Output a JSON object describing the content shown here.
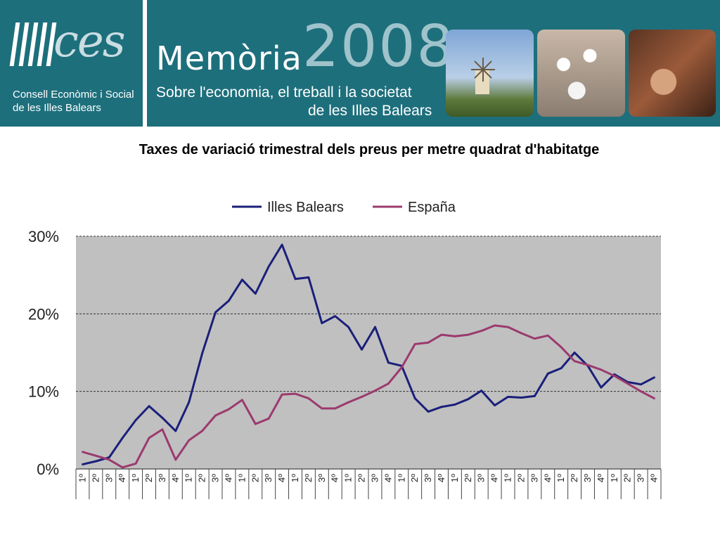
{
  "header": {
    "logo_text": "ces",
    "logo_line1": "Consell Econòmic i Social",
    "logo_line2": "de les Illes Balears",
    "memoria": "Memòria",
    "year": "2008",
    "subtitle_line1": "Sobre l'economia, el treball i la societat",
    "subtitle_line2": "de les Illes Balears",
    "photos": [
      "windmill-photo",
      "cooks-group-photo",
      "craft-hands-photo"
    ]
  },
  "chart_data": {
    "type": "line",
    "title": "Taxes de variació trimestral dels preus per metre quadrat d'habitatge",
    "ylim": [
      0,
      30
    ],
    "yticks": [
      "0%",
      "10%",
      "20%",
      "30%"
    ],
    "grid": true,
    "legend_position": "top",
    "background_color": "#c0c0c0",
    "categories": [
      "1º",
      "2º",
      "3º",
      "4º",
      "1º",
      "2º",
      "3º",
      "4º",
      "1º",
      "2º",
      "3º",
      "4º",
      "1º",
      "2º",
      "3º",
      "4º",
      "1º",
      "2º",
      "3º",
      "4º",
      "1º",
      "2º",
      "3º",
      "4º",
      "1º",
      "2º",
      "3º",
      "4º",
      "1º",
      "2º",
      "3º",
      "4º",
      "1º",
      "2º",
      "3º",
      "4º",
      "1º",
      "2º",
      "3º",
      "4º",
      "1º",
      "2º",
      "3º",
      "4º"
    ],
    "series": [
      {
        "name": "Illes Balears",
        "color": "#1a1f7a",
        "values": [
          0.6,
          1.0,
          1.5,
          4.0,
          6.3,
          8.1,
          6.6,
          4.9,
          8.6,
          14.9,
          20.2,
          21.7,
          24.4,
          22.6,
          26.1,
          28.9,
          24.5,
          24.7,
          18.8,
          19.7,
          18.3,
          15.4,
          18.3,
          13.7,
          13.3,
          9.1,
          7.4,
          8.0,
          8.3,
          9.0,
          10.1,
          8.2,
          9.3,
          9.2,
          9.4,
          12.3,
          13.0,
          15.0,
          13.3,
          10.5,
          12.2,
          11.2,
          10.9,
          11.8
        ]
      },
      {
        "name": "España",
        "color": "#9b3a6e",
        "values": [
          2.2,
          1.7,
          1.2,
          0.2,
          0.7,
          4.0,
          5.1,
          1.2,
          3.7,
          4.9,
          6.9,
          7.7,
          8.9,
          5.8,
          6.5,
          9.6,
          9.7,
          9.1,
          7.8,
          7.8,
          8.6,
          9.3,
          10.1,
          11.0,
          13.1,
          16.1,
          16.3,
          17.3,
          17.1,
          17.3,
          17.8,
          18.5,
          18.3,
          17.5,
          16.8,
          17.2,
          15.7,
          13.9,
          13.4,
          12.8,
          12.0,
          11.0,
          10.0,
          9.1
        ]
      }
    ]
  }
}
